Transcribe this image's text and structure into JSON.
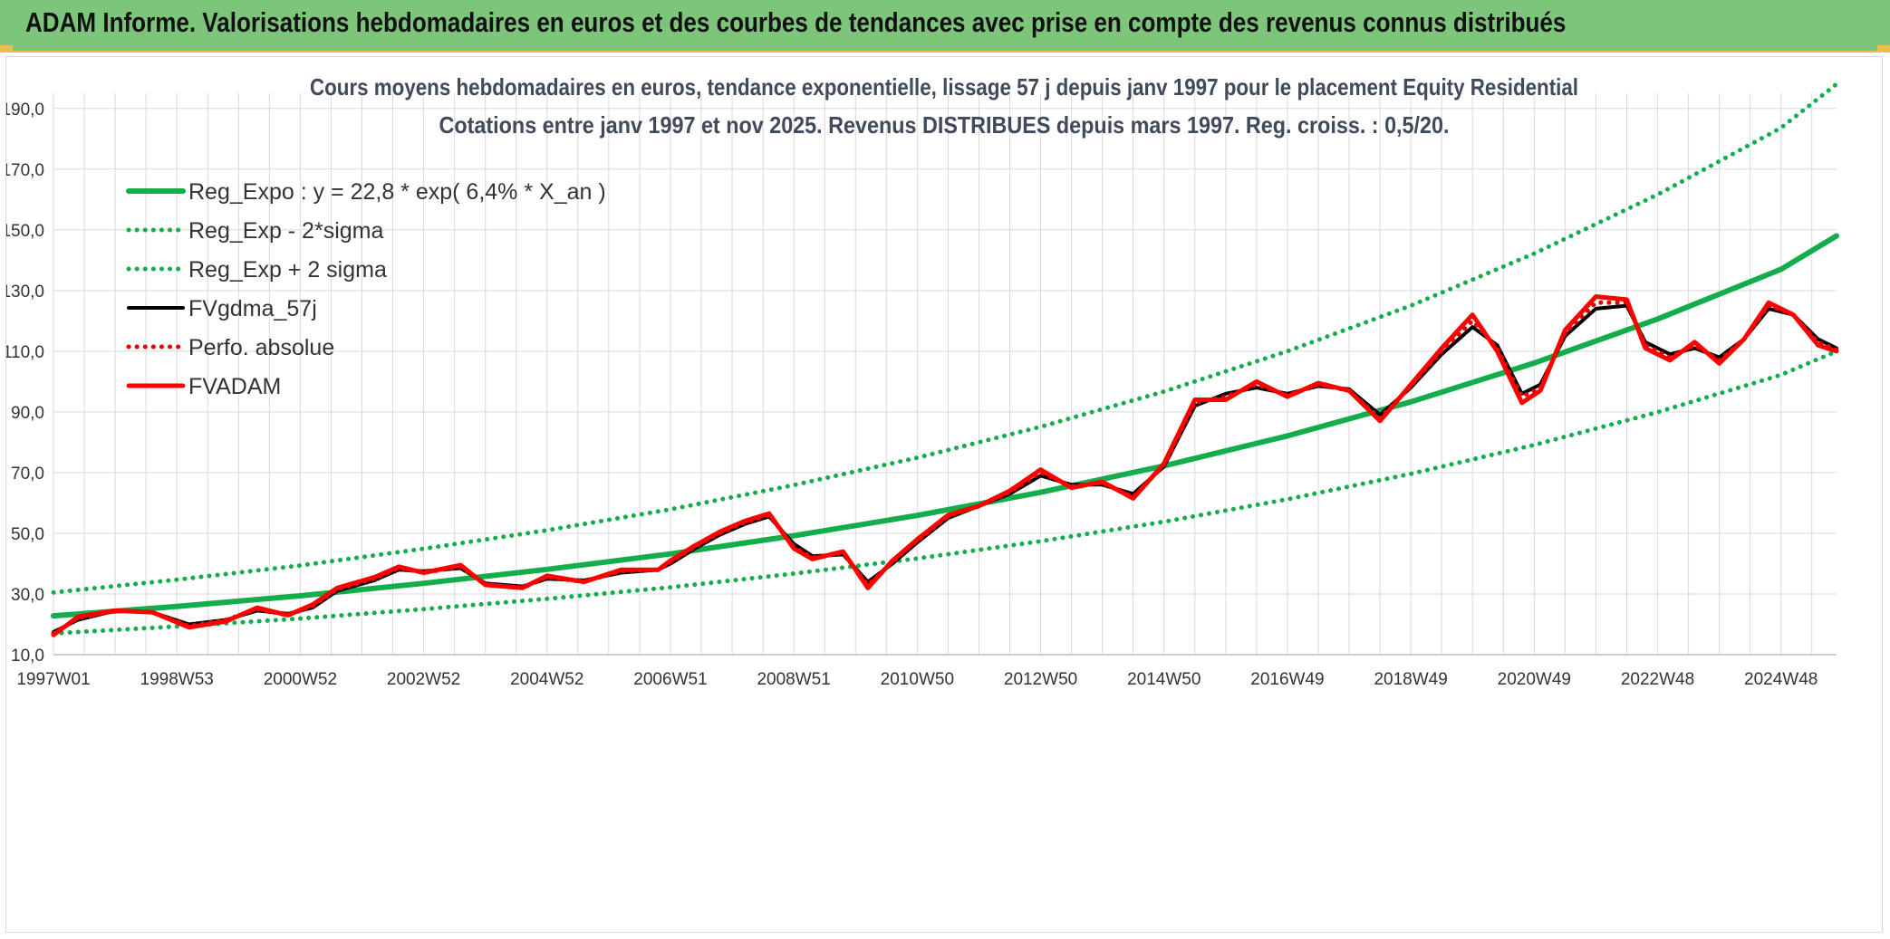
{
  "header": {
    "banner": "ADAM Informe. Valorisations hebdomadaires en euros et des courbes de tendances avec prise en compte des revenus connus distribués"
  },
  "colors": {
    "banner_bg": "#7dc57a",
    "reg_expo": "#13ad4b",
    "fvgdma": "#000000",
    "perfo": "#e00000",
    "fvadam": "#ff0000",
    "grid": "#d9d9d9"
  },
  "chart_data": {
    "type": "line",
    "title_line1": "Cours moyens hebdomadaires en euros, tendance exponentielle, lissage 57 j depuis janv 1997 pour le placement Equity Residential",
    "title_line2": "Cotations entre janv 1997 et nov 2025. Revenus DISTRIBUES depuis mars 1997. Reg. croiss. : 0,5/20.",
    "xlabel": "",
    "ylabel": "",
    "xlim": [
      1997.0,
      2025.9
    ],
    "ylim": [
      10,
      195
    ],
    "grid": true,
    "legend_position": "top-left",
    "y_ticks": [
      10,
      30,
      50,
      70,
      90,
      110,
      130,
      150,
      170,
      190
    ],
    "y_tick_labels": [
      "10,0",
      "30,0",
      "50,0",
      "70,0",
      "90,0",
      "110,0",
      "130,0",
      "150,0",
      "170,0",
      "190,0"
    ],
    "x_ticks": [
      {
        "label": "1997W01",
        "x": 1997.0
      },
      {
        "label": "1998W53",
        "x": 1999.0
      },
      {
        "label": "2000W52",
        "x": 2001.0
      },
      {
        "label": "2002W52",
        "x": 2003.0
      },
      {
        "label": "2004W52",
        "x": 2005.0
      },
      {
        "label": "2006W51",
        "x": 2007.0
      },
      {
        "label": "2008W51",
        "x": 2009.0
      },
      {
        "label": "2010W50",
        "x": 2011.0
      },
      {
        "label": "2012W50",
        "x": 2013.0
      },
      {
        "label": "2014W50",
        "x": 2015.0
      },
      {
        "label": "2016W49",
        "x": 2017.0
      },
      {
        "label": "2018W49",
        "x": 2019.0
      },
      {
        "label": "2020W49",
        "x": 2021.0
      },
      {
        "label": "2022W48",
        "x": 2023.0
      },
      {
        "label": "2024W48",
        "x": 2025.0
      }
    ],
    "series": [
      {
        "name": "Reg_Expo : y = 22,8 * exp( 6,4% *  X_an )",
        "style": "solid-thick",
        "color": "#13ad4b",
        "x": [
          1997.0,
          1999.0,
          2001.0,
          2003.0,
          2005.0,
          2007.0,
          2009.0,
          2011.0,
          2013.0,
          2015.0,
          2017.0,
          2019.0,
          2021.0,
          2023.0,
          2025.0,
          2025.9
        ],
        "y": [
          22.8,
          25.9,
          29.4,
          33.5,
          38.1,
          43.2,
          49.2,
          55.9,
          63.5,
          72.2,
          82.1,
          93.3,
          106.1,
          120.6,
          137.0,
          148.0
        ]
      },
      {
        "name": "Reg_Exp - 2*sigma",
        "style": "dotted",
        "color": "#13ad4b",
        "x": [
          1997.0,
          1999.0,
          2001.0,
          2003.0,
          2005.0,
          2007.0,
          2009.0,
          2011.0,
          2013.0,
          2015.0,
          2017.0,
          2019.0,
          2021.0,
          2023.0,
          2025.0,
          2025.9
        ],
        "y": [
          17.0,
          19.3,
          21.9,
          25.0,
          28.4,
          32.2,
          36.7,
          41.7,
          47.4,
          53.8,
          61.2,
          69.6,
          79.1,
          89.9,
          102.2,
          110.0
        ]
      },
      {
        "name": "Reg_Exp + 2 sigma",
        "style": "dotted",
        "color": "#13ad4b",
        "x": [
          1997.0,
          1999.0,
          2001.0,
          2003.0,
          2005.0,
          2007.0,
          2009.0,
          2011.0,
          2013.0,
          2015.0,
          2017.0,
          2019.0,
          2021.0,
          2023.0,
          2025.0,
          2025.9
        ],
        "y": [
          30.5,
          34.7,
          39.4,
          44.9,
          51.0,
          57.9,
          65.9,
          74.9,
          85.1,
          96.7,
          110.0,
          125.0,
          142.2,
          161.6,
          183.6,
          198.0
        ]
      },
      {
        "name": "FVgdma_57j",
        "style": "solid",
        "color": "#000000",
        "x": [
          1997.0,
          1997.4,
          1998.0,
          1998.6,
          1999.2,
          1999.8,
          2000.3,
          2000.8,
          2001.2,
          2001.6,
          2002.2,
          2002.6,
          2003.0,
          2003.6,
          2004.0,
          2004.6,
          2005.0,
          2005.6,
          2006.2,
          2006.8,
          2007.0,
          2007.4,
          2007.8,
          2008.2,
          2008.6,
          2009.0,
          2009.3,
          2009.8,
          2010.2,
          2010.6,
          2011.0,
          2011.5,
          2012.0,
          2012.5,
          2013.0,
          2013.5,
          2014.0,
          2014.5,
          2015.0,
          2015.5,
          2016.0,
          2016.5,
          2017.0,
          2017.5,
          2018.0,
          2018.5,
          2019.0,
          2019.5,
          2020.0,
          2020.4,
          2020.8,
          2021.1,
          2021.5,
          2022.0,
          2022.5,
          2022.8,
          2023.2,
          2023.6,
          2024.0,
          2024.4,
          2024.8,
          2025.2,
          2025.6,
          2025.9
        ],
        "y": [
          17.5,
          21.5,
          24.5,
          24.0,
          20.0,
          21.5,
          24.5,
          23.5,
          25.5,
          31.0,
          34.5,
          38.0,
          37.5,
          38.5,
          33.5,
          32.5,
          35.0,
          34.5,
          37.0,
          38.0,
          40.0,
          45.0,
          49.5,
          53.0,
          55.5,
          46.5,
          42.5,
          43.0,
          34.0,
          40.0,
          47.0,
          55.0,
          59.0,
          63.0,
          69.0,
          66.0,
          66.0,
          63.0,
          72.0,
          92.0,
          96.0,
          98.0,
          96.0,
          98.5,
          97.5,
          89.0,
          98.0,
          109.0,
          118.0,
          112.0,
          96.0,
          99.0,
          115.0,
          124.0,
          125.0,
          113.0,
          109.0,
          111.0,
          108.0,
          114.0,
          124.0,
          122.0,
          114.0,
          111.0
        ]
      },
      {
        "name": "Perfo. absolue",
        "style": "dotted",
        "color": "#e00000",
        "x": [
          1997.0,
          1997.4,
          1998.0,
          1998.6,
          1999.2,
          1999.8,
          2000.3,
          2000.8,
          2001.2,
          2001.6,
          2002.2,
          2002.6,
          2003.0,
          2003.6,
          2004.0,
          2004.6,
          2005.0,
          2005.6,
          2006.2,
          2006.8,
          2007.0,
          2007.4,
          2007.8,
          2008.2,
          2008.6,
          2009.0,
          2009.3,
          2009.8,
          2010.2,
          2010.6,
          2011.0,
          2011.5,
          2012.0,
          2012.5,
          2013.0,
          2013.5,
          2014.0,
          2014.5,
          2015.0,
          2015.5,
          2016.0,
          2016.5,
          2017.0,
          2017.5,
          2018.0,
          2018.5,
          2019.0,
          2019.5,
          2020.0,
          2020.4,
          2020.8,
          2021.1,
          2021.5,
          2022.0,
          2022.5,
          2022.8,
          2023.2,
          2023.6,
          2024.0,
          2024.4,
          2024.8,
          2025.2,
          2025.6,
          2025.9
        ],
        "y": [
          17.0,
          22.0,
          24.5,
          24.0,
          19.5,
          21.5,
          25.0,
          23.0,
          26.0,
          31.5,
          35.0,
          38.5,
          37.0,
          39.0,
          33.0,
          32.0,
          35.5,
          34.0,
          37.5,
          38.0,
          40.5,
          45.5,
          50.0,
          53.5,
          56.0,
          45.5,
          42.0,
          43.5,
          33.0,
          40.5,
          47.5,
          55.5,
          59.0,
          63.5,
          70.0,
          65.5,
          66.5,
          62.0,
          72.5,
          93.0,
          95.0,
          99.0,
          95.5,
          99.0,
          97.0,
          88.0,
          98.5,
          110.0,
          120.0,
          111.0,
          95.0,
          98.0,
          116.0,
          126.0,
          126.0,
          112.0,
          108.0,
          112.0,
          107.0,
          114.0,
          125.0,
          122.0,
          113.0,
          110.5
        ]
      },
      {
        "name": "FVADAM",
        "style": "solid-thick",
        "color": "#ff0000",
        "x": [
          1997.0,
          1997.4,
          1998.0,
          1998.6,
          1999.2,
          1999.8,
          2000.3,
          2000.8,
          2001.2,
          2001.6,
          2002.2,
          2002.6,
          2003.0,
          2003.6,
          2004.0,
          2004.6,
          2005.0,
          2005.6,
          2006.2,
          2006.8,
          2007.0,
          2007.4,
          2007.8,
          2008.2,
          2008.6,
          2009.0,
          2009.3,
          2009.8,
          2010.2,
          2010.6,
          2011.0,
          2011.5,
          2012.0,
          2012.5,
          2013.0,
          2013.5,
          2014.0,
          2014.5,
          2015.0,
          2015.5,
          2016.0,
          2016.5,
          2017.0,
          2017.5,
          2018.0,
          2018.5,
          2019.0,
          2019.5,
          2020.0,
          2020.4,
          2020.8,
          2021.1,
          2021.5,
          2022.0,
          2022.5,
          2022.8,
          2023.2,
          2023.6,
          2024.0,
          2024.4,
          2024.8,
          2025.2,
          2025.6,
          2025.9
        ],
        "y": [
          16.5,
          22.5,
          24.5,
          24.0,
          19.0,
          21.0,
          25.5,
          23.0,
          26.5,
          32.0,
          35.5,
          39.0,
          37.0,
          39.5,
          33.0,
          32.0,
          36.0,
          34.0,
          38.0,
          38.0,
          41.0,
          46.0,
          50.5,
          54.0,
          56.5,
          45.0,
          41.5,
          44.0,
          32.0,
          41.0,
          48.0,
          56.0,
          59.0,
          64.0,
          71.0,
          65.0,
          67.0,
          61.5,
          73.0,
          94.0,
          94.0,
          100.0,
          95.0,
          99.5,
          97.0,
          87.0,
          99.0,
          111.0,
          122.0,
          110.0,
          93.0,
          97.0,
          117.0,
          128.0,
          127.0,
          111.0,
          107.0,
          113.0,
          106.0,
          114.0,
          126.0,
          122.0,
          112.0,
          110.0
        ]
      }
    ]
  }
}
